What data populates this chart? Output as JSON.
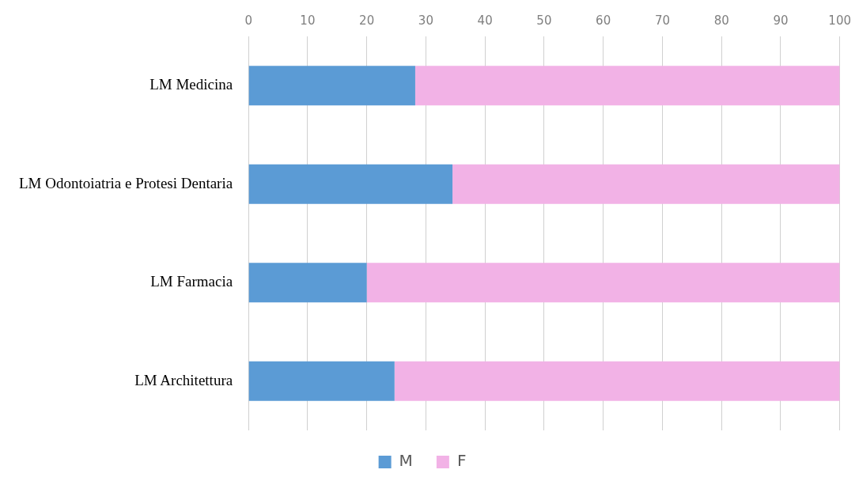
{
  "chart_data": {
    "type": "bar",
    "orientation": "horizontal",
    "stacked": true,
    "categories": [
      "LM Medicina",
      "LM Odontoiatria e Protesi Dentaria",
      "LM Farmacia",
      "LM Architettura"
    ],
    "series": [
      {
        "name": "M",
        "color": "#5b9bd5",
        "values": [
          28.2,
          34.5,
          20.0,
          24.7
        ]
      },
      {
        "name": "F",
        "color": "#f2b2e6",
        "values": [
          71.8,
          65.5,
          80.0,
          75.3
        ]
      }
    ],
    "xlim": [
      0,
      100
    ],
    "xticks": [
      0,
      10,
      20,
      30,
      40,
      50,
      60,
      70,
      80,
      90,
      100
    ],
    "grid": "x",
    "legend": "bottom"
  }
}
